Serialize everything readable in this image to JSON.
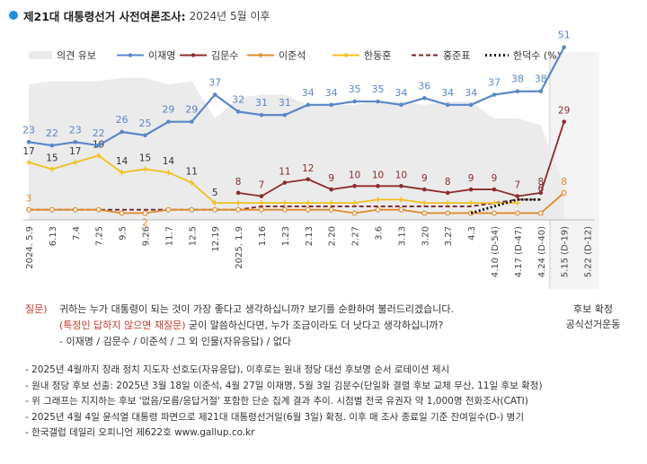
{
  "header": {
    "title": "제21대 대통령선거 사전여론조사:",
    "subtitle": "2024년 5월 이후"
  },
  "colors": {
    "title_dot": "#1d8fe3",
    "lee_jm": "#5b87c7",
    "kim_ms": "#8b2d2d",
    "lee_js": "#e08a2e",
    "han_dh": "#f0c020",
    "hong_jp": "#7a2626",
    "han_ds": "#111111",
    "area": "#ebebeb"
  },
  "chart_data": {
    "type": "line",
    "title": "제21대 대통령선거 사전여론조사: 2024년 5월 이후",
    "ylim": [
      0,
      55
    ],
    "x": [
      "2024. 5.9",
      "6.13",
      "7.4",
      "7.25",
      "9.5",
      "9.26",
      "11.7",
      "12.5",
      "12.19",
      "2025. 1.9",
      "1.16",
      "1.23",
      "2.13",
      "2.20",
      "2.27",
      "3.6",
      "3.13",
      "3.20",
      "3.27",
      "4.3",
      "4.10 (D-54)",
      "4.17 (D-47)",
      "4.24 (D-40)",
      "5.15 (D-19)",
      "5.22 (D-12)"
    ],
    "legend": [
      {
        "key": "area",
        "label": "의견 유보"
      },
      {
        "key": "lee_jm",
        "label": "이재명"
      },
      {
        "key": "kim_ms",
        "label": "김문수"
      },
      {
        "key": "lee_js",
        "label": "이준석"
      },
      {
        "key": "han_dh",
        "label": "한동훈"
      },
      {
        "key": "hong_jp",
        "label": "홍준표"
      },
      {
        "key": "han_ds",
        "label": "한덕수 (%)"
      }
    ],
    "series": [
      {
        "key": "area",
        "name": "의견 유보",
        "values": [
          40,
          41,
          41,
          41,
          42,
          42,
          40,
          41,
          30,
          36,
          37,
          37,
          34,
          34,
          34,
          35,
          35,
          34,
          35,
          35,
          30,
          30,
          28,
          10,
          null
        ]
      },
      {
        "key": "lee_jm",
        "name": "이재명",
        "values": [
          23,
          22,
          23,
          22,
          26,
          25,
          29,
          29,
          37,
          32,
          31,
          31,
          34,
          34,
          35,
          35,
          34,
          36,
          34,
          34,
          37,
          38,
          38,
          51,
          null
        ],
        "labels": [
          "23",
          "22",
          "23",
          "22",
          "26",
          "25",
          "29",
          "29",
          "37",
          "32",
          "31",
          "31",
          "34",
          "34",
          "35",
          "35",
          "34",
          "36",
          "34",
          "34",
          "37",
          "38",
          "38",
          "51",
          ""
        ]
      },
      {
        "key": "kim_ms",
        "name": "김문수",
        "values": [
          null,
          null,
          null,
          null,
          null,
          null,
          null,
          null,
          null,
          8,
          7,
          11,
          12,
          9,
          10,
          10,
          10,
          9,
          8,
          9,
          9,
          7,
          8,
          29,
          null
        ],
        "labels": [
          "",
          "",
          "",
          "",
          "",
          "",
          "",
          "",
          "",
          "8",
          "7",
          "11",
          "12",
          "9",
          "10",
          "10",
          "10",
          "9",
          "8",
          "9",
          "9",
          "7",
          "8",
          "29",
          ""
        ]
      },
      {
        "key": "lee_js",
        "name": "이준석",
        "values": [
          3,
          3,
          3,
          3,
          2,
          2,
          3,
          3,
          3,
          3,
          3,
          3,
          3,
          3,
          2,
          3,
          3,
          2,
          2,
          2,
          2,
          2,
          2,
          8,
          null
        ],
        "labels": [
          "3",
          "",
          "",
          "",
          "",
          "2",
          "",
          "",
          "",
          "",
          "",
          "",
          "",
          "",
          "",
          "",
          "",
          "",
          "",
          "",
          "",
          "",
          "",
          "8",
          ""
        ]
      },
      {
        "key": "han_dh",
        "name": "한동훈",
        "values": [
          17,
          15,
          17,
          19,
          14,
          15,
          14,
          11,
          5,
          5,
          5,
          5,
          5,
          5,
          5,
          6,
          6,
          5,
          5,
          5,
          5,
          5,
          null,
          null,
          null
        ],
        "labels": [
          "17",
          "15",
          "17",
          "19",
          "14",
          "15",
          "14",
          "11",
          "5",
          "",
          "",
          "",
          "",
          "",
          "",
          "",
          "",
          "",
          "",
          "",
          "",
          "",
          "",
          "",
          ""
        ]
      },
      {
        "key": "hong_jp",
        "name": "홍준표",
        "values": [
          3,
          3,
          3,
          3,
          3,
          3,
          3,
          3,
          3,
          3,
          4,
          4,
          4,
          4,
          4,
          4,
          4,
          4,
          4,
          4,
          5,
          6,
          6,
          null,
          null
        ],
        "labels": [
          "",
          "",
          "",
          "",
          "",
          "",
          "",
          "",
          "",
          "",
          "",
          "",
          "",
          "",
          "",
          "",
          "",
          "",
          "",
          "",
          "",
          "",
          "6",
          "",
          ""
        ]
      },
      {
        "key": "han_ds",
        "name": "한덕수",
        "values": [
          null,
          null,
          null,
          null,
          null,
          null,
          null,
          null,
          null,
          null,
          null,
          null,
          null,
          null,
          null,
          null,
          null,
          null,
          null,
          2,
          4,
          6,
          6,
          null,
          null
        ],
        "labels": [
          "",
          "",
          "",
          "",
          "",
          "",
          "",
          "",
          "",
          "",
          "",
          "",
          "",
          "",
          "",
          "",
          "",
          "",
          "",
          "",
          "",
          "",
          "",
          "",
          ""
        ]
      }
    ],
    "final_label": "후보 확정 공식선거운동"
  },
  "question": {
    "label": "질문)",
    "line1": "귀하는 누가 대통령이 되는 것이 가장 좋다고 생각하십니까? 보기를 순환하여 불러드리겠습니다.",
    "line2_red": "(특정인 답하지 않으면 재질문)",
    "line2_rest": " 굳이 말씀하신다면, 누가 조금이라도 더 낫다고 생각하십니까?",
    "line3": "- 이재명 / 김문수 / 이준석 / 그 외 인물(자유응답) / 없다"
  },
  "final_note": {
    "line1": "후보 확정",
    "line2": "공식선거운동"
  },
  "notes": [
    "- 2025년 4월까지 장래 정치 지도자 선호도(자유응답), 이후로는 원내 정당 대선 후보명 순서 로테이션 제시",
    "- 원내 정당 후보 선출: 2025년 3월 18일 이준석, 4월 27일 이재명, 5월 3일 김문수(단일화 결렬 후보 교체 무산, 11일 후보 확정)",
    "- 위 그래프는 지지하는 후보 '없음/모름/응답거절' 포함한 단순 집계 결과 추이. 시점별 전국 유권자 약 1,000명 전화조사(CATI)",
    "- 2025년 4월 4일 윤석열 대통령 파면으로 제21대 대통령선거일(6월 3일) 확정. 이후 매 조사 종료일 기준 잔여일수(D-) 병기",
    "- 한국갤럽 데일리 오피니언 제622호 www.gallup.co.kr"
  ]
}
